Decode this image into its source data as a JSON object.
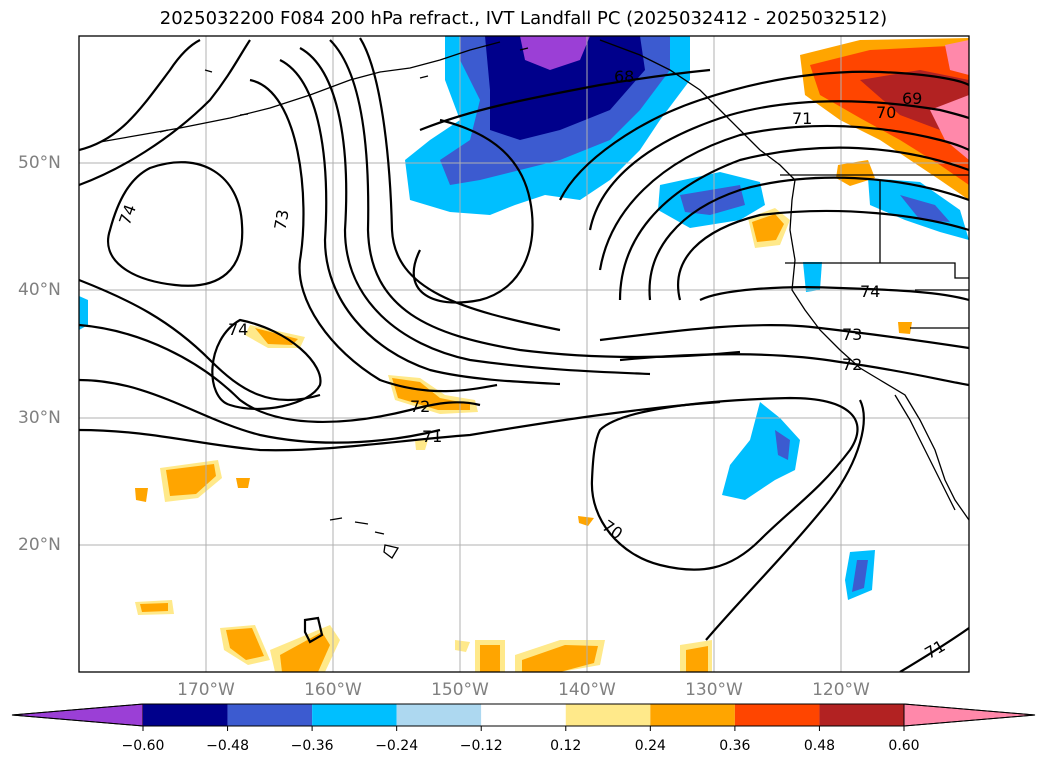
{
  "title": "2025032200 F084 200 hPa refract., IVT Landfall PC (2025032412 - 2025032512)",
  "lat_labels": [
    "50°N",
    "40°N",
    "30°N",
    "20°N"
  ],
  "lon_labels": [
    "170°W",
    "160°W",
    "150°W",
    "140°W",
    "130°W",
    "120°W"
  ],
  "contour_labels": [
    "74",
    "73",
    "74",
    "72",
    "71",
    "70",
    "68",
    "71",
    "70",
    "69",
    "74",
    "73",
    "72",
    "71"
  ],
  "colorbar": {
    "ticks": [
      "−0.60",
      "−0.48",
      "−0.36",
      "−0.24",
      "−0.12",
      "0.12",
      "0.24",
      "0.36",
      "0.48",
      "0.60"
    ],
    "colors": [
      "#9b3fd6",
      "#00008b",
      "#3c5bd0",
      "#00bfff",
      "#add8f0",
      "#ffffff",
      "#ffe98a",
      "#ffa500",
      "#ff4500",
      "#b22222",
      "#ff88aa"
    ]
  },
  "chart_data": {
    "type": "filled-contour map",
    "title": "2025032200 F084 200 hPa refract., IVT Landfall PC (2025032412 - 2025032512)",
    "lon_range": [
      -180,
      -110
    ],
    "lat_range": [
      10,
      60
    ],
    "line_contour_levels": [
      68,
      69,
      70,
      71,
      72,
      73,
      74
    ],
    "color_levels": [
      -0.6,
      -0.48,
      -0.36,
      -0.24,
      -0.12,
      0.12,
      0.24,
      0.36,
      0.48,
      0.6
    ]
  }
}
